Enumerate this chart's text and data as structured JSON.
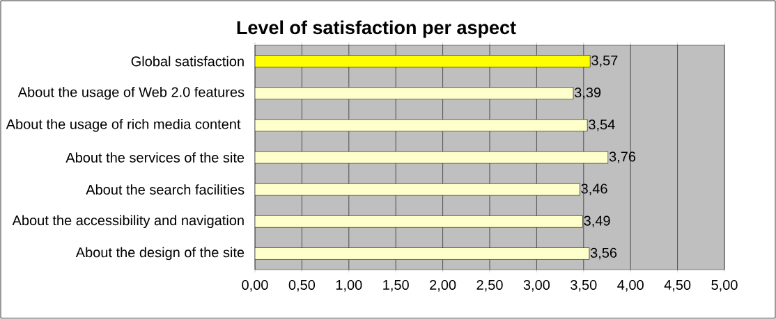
{
  "chart_data": {
    "type": "bar",
    "orientation": "horizontal",
    "title": "Level of satisfaction per aspect",
    "categories": [
      "Global satisfaction",
      "About the usage of Web 2.0 features",
      "About the usage of rich media content ",
      "About the services of the site",
      "About the search facilities",
      "About the accessibility and navigation",
      "About the design of the site"
    ],
    "values": [
      3.57,
      3.39,
      3.54,
      3.76,
      3.46,
      3.49,
      3.56
    ],
    "value_labels": [
      "3,57",
      "3,39",
      "3,54",
      "3,76",
      "3,46",
      "3,49",
      "3,56"
    ],
    "colors": [
      "#ffff00",
      "#ffffcc",
      "#ffffcc",
      "#ffffcc",
      "#ffffcc",
      "#ffffcc",
      "#ffffcc"
    ],
    "xlim": [
      0,
      5
    ],
    "xticks": [
      {
        "value": 0,
        "label": "0,00"
      },
      {
        "value": 0.5,
        "label": "0,50"
      },
      {
        "value": 1,
        "label": "1,00"
      },
      {
        "value": 1.5,
        "label": "1,50"
      },
      {
        "value": 2,
        "label": "2,00"
      },
      {
        "value": 2.5,
        "label": "2,50"
      },
      {
        "value": 3,
        "label": "3,00"
      },
      {
        "value": 3.5,
        "label": "3,50"
      },
      {
        "value": 4,
        "label": "4,00"
      },
      {
        "value": 4.5,
        "label": "4,50"
      },
      {
        "value": 5,
        "label": "5,00"
      }
    ],
    "grid": "x"
  }
}
